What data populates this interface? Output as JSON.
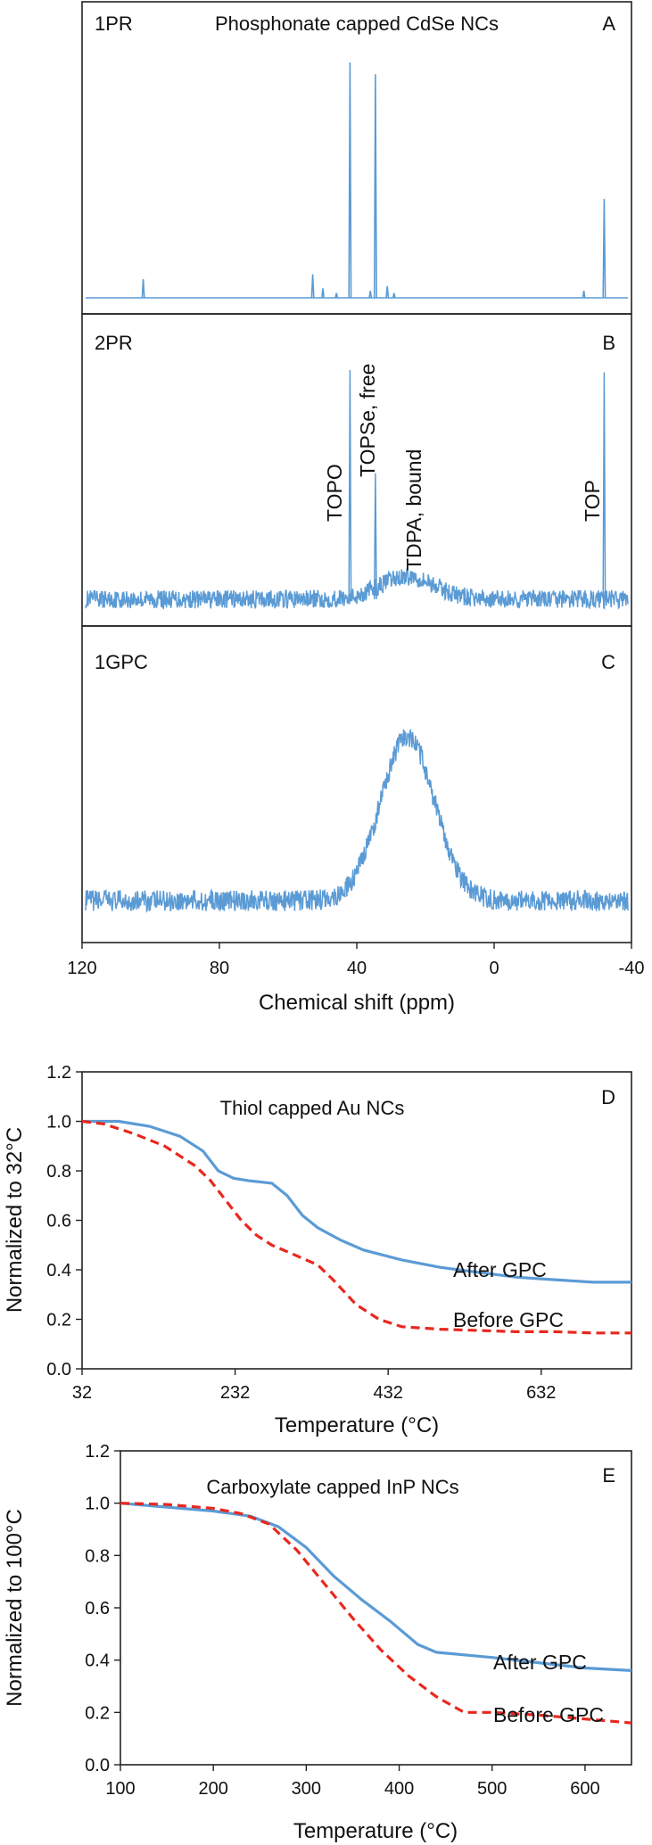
{
  "chart_data": [
    {
      "panel": "A",
      "type": "line",
      "title": "Phosphonate capped CdSe NCs",
      "sample_label": "1PR",
      "panel_letter": "A",
      "xlim": [
        120,
        -40
      ],
      "ylim": [
        0,
        1
      ],
      "peaks": [
        {
          "x": 103,
          "h": 0.08
        },
        {
          "x": 53,
          "h": 0.1
        },
        {
          "x": 50,
          "h": 0.04
        },
        {
          "x": 46,
          "h": 0.02
        },
        {
          "x": 42,
          "h": 1.0
        },
        {
          "x": 36,
          "h": 0.03
        },
        {
          "x": 34.5,
          "h": 0.95
        },
        {
          "x": 31,
          "h": 0.05
        },
        {
          "x": 29,
          "h": 0.02
        },
        {
          "x": -27,
          "h": 0.03
        },
        {
          "x": -33,
          "h": 0.42
        }
      ],
      "color": "#5b9bd5"
    },
    {
      "panel": "B",
      "type": "line",
      "sample_label": "2PR",
      "panel_letter": "B",
      "xlim": [
        120,
        -40
      ],
      "ylim": [
        0,
        1
      ],
      "noise_amplitude": 0.04,
      "broad_peak": {
        "center": 25,
        "width": 8,
        "height": 0.1
      },
      "peaks": [
        {
          "x": 42,
          "h": 1.0,
          "label": "TOPO"
        },
        {
          "x": 34.5,
          "h": 0.55,
          "label": "TOPSe, free"
        },
        {
          "x": -33,
          "h": 0.99,
          "label": "TOP"
        }
      ],
      "annotations": [
        "TOPO",
        "TOPSe, free",
        "TDPA, bound",
        "TOP"
      ],
      "color": "#5b9bd5"
    },
    {
      "panel": "C",
      "type": "line",
      "sample_label": "1GPC",
      "panel_letter": "C",
      "xlim": [
        120,
        -40
      ],
      "ylim": [
        0,
        1
      ],
      "noise_amplitude": 0.05,
      "broad_peak": {
        "center": 25,
        "width": 8,
        "height": 0.78
      },
      "xlabel": "Chemical shift (ppm)",
      "xticks": [
        120,
        80,
        40,
        0,
        -40
      ],
      "color": "#5b9bd5"
    },
    {
      "panel": "D",
      "type": "line",
      "title": "Thiol capped Au NCs",
      "panel_letter": "D",
      "xlabel": "Temperature (°C)",
      "ylabel": "Normalized to 32°C",
      "xlim": [
        32,
        750
      ],
      "ylim": [
        0,
        1.2
      ],
      "xticks": [
        32,
        232,
        432,
        632
      ],
      "yticks": [
        0,
        0.2,
        0.4,
        0.6,
        0.8,
        1.0,
        1.2
      ],
      "series": [
        {
          "name": "After GPC",
          "color": "#5b9bd5",
          "dashed": false,
          "x": [
            32,
            80,
            120,
            160,
            190,
            210,
            230,
            250,
            280,
            300,
            320,
            340,
            370,
            400,
            450,
            500,
            550,
            600,
            650,
            700,
            750
          ],
          "y": [
            1.0,
            1.0,
            0.98,
            0.94,
            0.88,
            0.8,
            0.77,
            0.76,
            0.75,
            0.7,
            0.62,
            0.57,
            0.52,
            0.48,
            0.44,
            0.41,
            0.39,
            0.37,
            0.36,
            0.35,
            0.35
          ]
        },
        {
          "name": "Before GPC",
          "color": "#e8281e",
          "dashed": true,
          "x": [
            32,
            60,
            100,
            140,
            180,
            200,
            220,
            240,
            260,
            280,
            310,
            340,
            360,
            390,
            420,
            450,
            500,
            550,
            600,
            650,
            700,
            750
          ],
          "y": [
            1.0,
            0.99,
            0.95,
            0.9,
            0.82,
            0.76,
            0.68,
            0.6,
            0.54,
            0.5,
            0.46,
            0.42,
            0.36,
            0.26,
            0.2,
            0.17,
            0.16,
            0.155,
            0.15,
            0.15,
            0.145,
            0.145
          ]
        }
      ],
      "series_labels": [
        "After GPC",
        "Before GPC"
      ]
    },
    {
      "panel": "E",
      "type": "line",
      "title": "Carboxylate capped InP NCs",
      "panel_letter": "E",
      "xlabel": "Temperature (°C)",
      "ylabel": "Normalized to 100°C",
      "xlim": [
        100,
        650
      ],
      "ylim": [
        0,
        1.2
      ],
      "xticks": [
        100,
        200,
        300,
        400,
        500,
        600
      ],
      "yticks": [
        0,
        0.2,
        0.4,
        0.6,
        0.8,
        1.0,
        1.2
      ],
      "series": [
        {
          "name": "After GPC",
          "color": "#5b9bd5",
          "dashed": false,
          "x": [
            100,
            150,
            200,
            240,
            270,
            300,
            330,
            360,
            390,
            420,
            440,
            470,
            500,
            550,
            600,
            650
          ],
          "y": [
            1.0,
            0.985,
            0.97,
            0.95,
            0.91,
            0.83,
            0.72,
            0.63,
            0.55,
            0.46,
            0.43,
            0.42,
            0.41,
            0.39,
            0.37,
            0.36
          ]
        },
        {
          "name": "Before GPC",
          "color": "#e8281e",
          "dashed": true,
          "x": [
            100,
            150,
            200,
            230,
            260,
            290,
            320,
            350,
            380,
            410,
            440,
            460,
            470,
            500,
            550,
            600,
            650
          ],
          "y": [
            1.0,
            0.995,
            0.98,
            0.96,
            0.92,
            0.82,
            0.69,
            0.56,
            0.44,
            0.34,
            0.26,
            0.22,
            0.2,
            0.2,
            0.19,
            0.175,
            0.16
          ]
        }
      ],
      "series_labels": [
        "After GPC",
        "Before GPC"
      ]
    }
  ]
}
